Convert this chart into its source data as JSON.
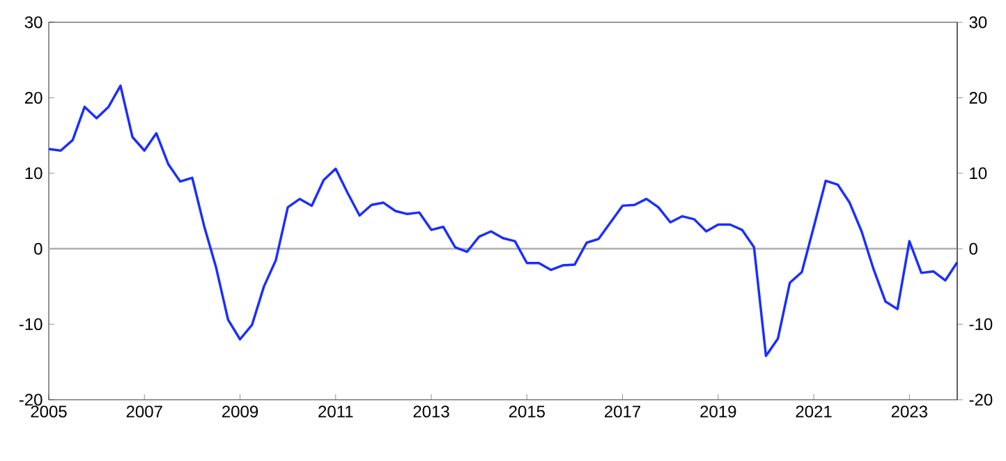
{
  "chart_data": {
    "type": "line",
    "x": [
      2005,
      2005.25,
      2005.5,
      2005.75,
      2006,
      2006.25,
      2006.5,
      2006.75,
      2007,
      2007.25,
      2007.5,
      2007.75,
      2008,
      2008.25,
      2008.5,
      2008.75,
      2009,
      2009.25,
      2009.5,
      2009.75,
      2010,
      2010.25,
      2010.5,
      2010.75,
      2011,
      2011.25,
      2011.5,
      2011.75,
      2012,
      2012.25,
      2012.5,
      2012.75,
      2013,
      2013.25,
      2013.5,
      2013.75,
      2014,
      2014.25,
      2014.5,
      2014.75,
      2015,
      2015.25,
      2015.5,
      2015.75,
      2016,
      2016.25,
      2016.5,
      2016.75,
      2017,
      2017.25,
      2017.5,
      2017.75,
      2018,
      2018.25,
      2018.5,
      2018.75,
      2019,
      2019.25,
      2019.5,
      2019.75,
      2020,
      2020.25,
      2020.5,
      2020.75,
      2021,
      2021.25,
      2021.5,
      2021.75,
      2022,
      2022.25,
      2022.5,
      2022.75,
      2023,
      2023.25,
      2023.5,
      2023.75,
      2024
    ],
    "series": [
      {
        "color": "#1a2eff",
        "values": [
          13.2,
          13.0,
          14.4,
          18.8,
          17.3,
          18.8,
          21.6,
          14.8,
          13.0,
          15.3,
          11.2,
          8.9,
          9.4,
          3.0,
          -2.5,
          -9.4,
          -12.0,
          -10.1,
          -5.0,
          -1.5,
          5.5,
          6.6,
          5.7,
          9.1,
          10.6,
          7.4,
          4.4,
          5.8,
          6.1,
          5.0,
          4.6,
          4.8,
          2.5,
          2.9,
          0.2,
          -0.4,
          1.6,
          2.3,
          1.4,
          1.0,
          -1.9,
          -1.9,
          -2.8,
          -2.2,
          -2.1,
          0.8,
          1.3,
          3.5,
          5.7,
          5.8,
          6.6,
          5.5,
          3.5,
          4.3,
          3.9,
          2.3,
          3.2,
          3.2,
          2.5,
          0.2,
          -14.2,
          -11.9,
          -4.5,
          -3.1,
          2.9,
          9.0,
          8.5,
          6.1,
          2.3,
          -2.7,
          -7.0,
          -8.0,
          1.0,
          -3.2,
          -3.0,
          -4.2,
          -1.8
        ]
      }
    ],
    "xlim": [
      2005,
      2024
    ],
    "xticks": [
      2005,
      2007,
      2009,
      2011,
      2013,
      2015,
      2017,
      2019,
      2021,
      2023
    ],
    "ylim": [
      -20,
      30
    ],
    "yticks": [
      -20,
      -10,
      0,
      10,
      20,
      30
    ],
    "y2lim": [
      -20,
      30
    ],
    "y2ticks": [
      -20,
      -10,
      0,
      10,
      20,
      30
    ],
    "ref_lines": [
      {
        "axis": "y",
        "value": 0,
        "color": "#b3b3b3"
      }
    ],
    "line_style": "solid",
    "marker": "none"
  }
}
